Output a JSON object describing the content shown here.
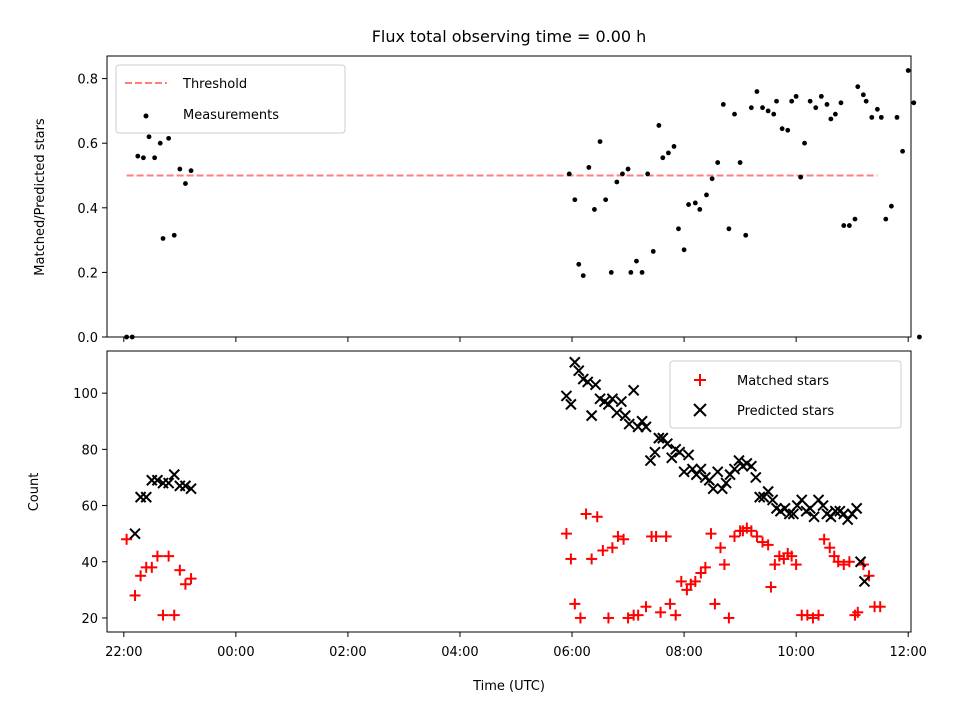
{
  "chart_data": [
    {
      "type": "scatter",
      "title": "Flux total observing time = 0.00 h",
      "xlabel": "",
      "ylabel": "Matched/Predicted stars",
      "xlim": [
        -2.3,
        12.05
      ],
      "ylim": [
        0.0,
        0.87
      ],
      "yticks": [
        0.0,
        0.2,
        0.4,
        0.6,
        0.8
      ],
      "ytick_labels": [
        "0.0",
        "0.2",
        "0.4",
        "0.6",
        "0.8"
      ],
      "legend_position": "upper left",
      "threshold": {
        "name": "Threshold",
        "value": 0.5,
        "x_range": [
          -1.95,
          11.45
        ],
        "color": "#ff7f7f",
        "style": "dashed"
      },
      "series": [
        {
          "name": "Measurements",
          "color": "#000000",
          "marker": "dot",
          "points": [
            [
              -1.95,
              0.0
            ],
            [
              -1.85,
              0.0
            ],
            [
              -1.75,
              0.56
            ],
            [
              -1.65,
              0.555
            ],
            [
              -1.55,
              0.62
            ],
            [
              -1.45,
              0.555
            ],
            [
              -1.35,
              0.6
            ],
            [
              -1.3,
              0.305
            ],
            [
              -1.2,
              0.615
            ],
            [
              -1.1,
              0.315
            ],
            [
              -1.0,
              0.52
            ],
            [
              -0.9,
              0.475
            ],
            [
              -0.8,
              0.515
            ],
            [
              5.95,
              0.505
            ],
            [
              6.05,
              0.425
            ],
            [
              6.12,
              0.225
            ],
            [
              6.2,
              0.19
            ],
            [
              6.3,
              0.525
            ],
            [
              6.4,
              0.395
            ],
            [
              6.5,
              0.605
            ],
            [
              6.6,
              0.425
            ],
            [
              6.7,
              0.2
            ],
            [
              6.8,
              0.48
            ],
            [
              6.9,
              0.505
            ],
            [
              7.0,
              0.52
            ],
            [
              7.05,
              0.2
            ],
            [
              7.15,
              0.235
            ],
            [
              7.25,
              0.2
            ],
            [
              7.35,
              0.505
            ],
            [
              7.45,
              0.265
            ],
            [
              7.55,
              0.655
            ],
            [
              7.62,
              0.555
            ],
            [
              7.72,
              0.57
            ],
            [
              7.82,
              0.59
            ],
            [
              7.9,
              0.335
            ],
            [
              8.0,
              0.27
            ],
            [
              8.08,
              0.41
            ],
            [
              8.2,
              0.415
            ],
            [
              8.28,
              0.395
            ],
            [
              8.4,
              0.44
            ],
            [
              8.5,
              0.49
            ],
            [
              8.6,
              0.54
            ],
            [
              8.7,
              0.72
            ],
            [
              8.8,
              0.335
            ],
            [
              8.9,
              0.69
            ],
            [
              9.0,
              0.54
            ],
            [
              9.1,
              0.315
            ],
            [
              9.2,
              0.71
            ],
            [
              9.3,
              0.76
            ],
            [
              9.4,
              0.71
            ],
            [
              9.5,
              0.7
            ],
            [
              9.6,
              0.69
            ],
            [
              9.65,
              0.73
            ],
            [
              9.75,
              0.645
            ],
            [
              9.85,
              0.64
            ],
            [
              9.92,
              0.73
            ],
            [
              10.0,
              0.745
            ],
            [
              10.08,
              0.495
            ],
            [
              10.15,
              0.6
            ],
            [
              10.25,
              0.73
            ],
            [
              10.35,
              0.71
            ],
            [
              10.45,
              0.745
            ],
            [
              10.55,
              0.72
            ],
            [
              10.62,
              0.675
            ],
            [
              10.7,
              0.69
            ],
            [
              10.8,
              0.725
            ],
            [
              10.85,
              0.345
            ],
            [
              10.95,
              0.345
            ],
            [
              11.05,
              0.365
            ],
            [
              11.1,
              0.775
            ],
            [
              11.2,
              0.75
            ],
            [
              11.25,
              0.73
            ],
            [
              11.35,
              0.68
            ],
            [
              11.45,
              0.705
            ],
            [
              11.52,
              0.68
            ],
            [
              11.6,
              0.365
            ],
            [
              11.7,
              0.405
            ],
            [
              11.8,
              0.68
            ],
            [
              11.9,
              0.575
            ],
            [
              12.0,
              0.825
            ],
            [
              12.1,
              0.725
            ],
            [
              12.2,
              0.0
            ]
          ]
        }
      ]
    },
    {
      "type": "scatter",
      "title": "",
      "xlabel": "Time (UTC)",
      "ylabel": "Count",
      "xlim": [
        -2.3,
        12.05
      ],
      "ylim": [
        15,
        115
      ],
      "yticks": [
        20,
        40,
        60,
        80,
        100
      ],
      "ytick_labels": [
        "20",
        "40",
        "60",
        "80",
        "100"
      ],
      "xticks": [
        -2,
        0,
        2,
        4,
        6,
        8,
        10,
        12
      ],
      "xtick_labels": [
        "22:00",
        "00:00",
        "02:00",
        "04:00",
        "06:00",
        "08:00",
        "10:00",
        "12:00"
      ],
      "legend_position": "upper right",
      "series": [
        {
          "name": "Matched stars",
          "color": "#ff0000",
          "marker": "plus",
          "points": [
            [
              -1.95,
              48
            ],
            [
              -1.8,
              28
            ],
            [
              -1.7,
              35
            ],
            [
              -1.6,
              38
            ],
            [
              -1.5,
              38
            ],
            [
              -1.4,
              42
            ],
            [
              -1.3,
              21
            ],
            [
              -1.2,
              42
            ],
            [
              -1.1,
              21
            ],
            [
              -1.0,
              37
            ],
            [
              -0.9,
              32
            ],
            [
              -0.8,
              34
            ],
            [
              5.9,
              50
            ],
            [
              5.98,
              41
            ],
            [
              6.05,
              25
            ],
            [
              6.15,
              20
            ],
            [
              6.25,
              57
            ],
            [
              6.35,
              41
            ],
            [
              6.45,
              56
            ],
            [
              6.55,
              44
            ],
            [
              6.65,
              20
            ],
            [
              6.72,
              45
            ],
            [
              6.82,
              49
            ],
            [
              6.92,
              48
            ],
            [
              7.0,
              20
            ],
            [
              7.1,
              21
            ],
            [
              7.18,
              21
            ],
            [
              7.32,
              24
            ],
            [
              7.42,
              49
            ],
            [
              7.5,
              49
            ],
            [
              7.58,
              22
            ],
            [
              7.68,
              49
            ],
            [
              7.75,
              25
            ],
            [
              7.85,
              21
            ],
            [
              7.95,
              33
            ],
            [
              8.05,
              30
            ],
            [
              8.12,
              32
            ],
            [
              8.2,
              33
            ],
            [
              8.3,
              36
            ],
            [
              8.38,
              38
            ],
            [
              8.48,
              50
            ],
            [
              8.55,
              25
            ],
            [
              8.65,
              45
            ],
            [
              8.72,
              39
            ],
            [
              8.8,
              20
            ],
            [
              8.9,
              49
            ],
            [
              9.0,
              51
            ],
            [
              9.05,
              51
            ],
            [
              9.12,
              52
            ],
            [
              9.2,
              51
            ],
            [
              9.3,
              49
            ],
            [
              9.4,
              47
            ],
            [
              9.5,
              46
            ],
            [
              9.55,
              31
            ],
            [
              9.62,
              39
            ],
            [
              9.7,
              42
            ],
            [
              9.78,
              41
            ],
            [
              9.85,
              43
            ],
            [
              9.92,
              42
            ],
            [
              10.0,
              39
            ],
            [
              10.1,
              21
            ],
            [
              10.2,
              21
            ],
            [
              10.3,
              20
            ],
            [
              10.4,
              21
            ],
            [
              10.5,
              48
            ],
            [
              10.6,
              45
            ],
            [
              10.68,
              42
            ],
            [
              10.75,
              40
            ],
            [
              10.85,
              39
            ],
            [
              10.95,
              40
            ],
            [
              11.05,
              21
            ],
            [
              11.1,
              22
            ],
            [
              11.2,
              39
            ],
            [
              11.3,
              35
            ],
            [
              11.4,
              24
            ],
            [
              11.5,
              24
            ]
          ]
        },
        {
          "name": "Predicted stars",
          "color": "#000000",
          "marker": "x",
          "points": [
            [
              -1.8,
              50
            ],
            [
              -1.7,
              63
            ],
            [
              -1.6,
              63
            ],
            [
              -1.5,
              69
            ],
            [
              -1.4,
              69
            ],
            [
              -1.3,
              68
            ],
            [
              -1.2,
              68
            ],
            [
              -1.1,
              71
            ],
            [
              -1.0,
              67
            ],
            [
              -0.9,
              67
            ],
            [
              -0.8,
              66
            ],
            [
              5.9,
              99
            ],
            [
              5.98,
              96
            ],
            [
              6.05,
              111
            ],
            [
              6.12,
              108
            ],
            [
              6.2,
              105
            ],
            [
              6.28,
              104
            ],
            [
              6.35,
              92
            ],
            [
              6.42,
              103
            ],
            [
              6.5,
              98
            ],
            [
              6.58,
              97
            ],
            [
              6.65,
              96
            ],
            [
              6.72,
              98
            ],
            [
              6.8,
              93
            ],
            [
              6.88,
              97
            ],
            [
              6.95,
              92
            ],
            [
              7.02,
              89
            ],
            [
              7.1,
              101
            ],
            [
              7.18,
              88
            ],
            [
              7.25,
              90
            ],
            [
              7.32,
              88
            ],
            [
              7.4,
              76
            ],
            [
              7.48,
              79
            ],
            [
              7.55,
              84
            ],
            [
              7.62,
              84
            ],
            [
              7.7,
              82
            ],
            [
              7.78,
              77
            ],
            [
              7.85,
              80
            ],
            [
              7.92,
              79
            ],
            [
              8.0,
              72
            ],
            [
              8.08,
              78
            ],
            [
              8.15,
              73
            ],
            [
              8.22,
              71
            ],
            [
              8.3,
              73
            ],
            [
              8.38,
              70
            ],
            [
              8.45,
              69
            ],
            [
              8.52,
              66
            ],
            [
              8.6,
              72
            ],
            [
              8.68,
              66
            ],
            [
              8.75,
              68
            ],
            [
              8.82,
              71
            ],
            [
              8.9,
              73
            ],
            [
              8.98,
              76
            ],
            [
              9.05,
              74
            ],
            [
              9.12,
              75
            ],
            [
              9.2,
              74
            ],
            [
              9.28,
              70
            ],
            [
              9.35,
              63
            ],
            [
              9.42,
              63
            ],
            [
              9.5,
              65
            ],
            [
              9.58,
              62
            ],
            [
              9.65,
              59
            ],
            [
              9.72,
              58
            ],
            [
              9.8,
              59
            ],
            [
              9.88,
              57
            ],
            [
              9.95,
              57
            ],
            [
              10.02,
              60
            ],
            [
              10.1,
              62
            ],
            [
              10.18,
              58
            ],
            [
              10.25,
              59
            ],
            [
              10.32,
              56
            ],
            [
              10.4,
              62
            ],
            [
              10.48,
              60
            ],
            [
              10.55,
              57
            ],
            [
              10.62,
              56
            ],
            [
              10.7,
              58
            ],
            [
              10.78,
              58
            ],
            [
              10.85,
              57
            ],
            [
              10.92,
              55
            ],
            [
              11.0,
              57
            ],
            [
              11.08,
              59
            ],
            [
              11.15,
              40
            ],
            [
              11.22,
              33
            ]
          ]
        }
      ]
    }
  ]
}
